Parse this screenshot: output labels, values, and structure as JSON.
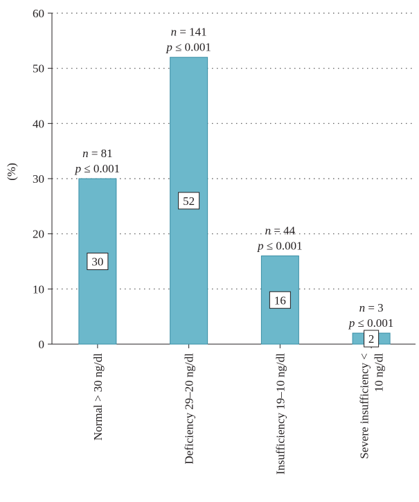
{
  "chart_data": {
    "type": "bar",
    "ylabel": "(%)",
    "ylim": [
      0,
      60
    ],
    "yticks": [
      0,
      10,
      20,
      30,
      40,
      50,
      60
    ],
    "grid": "horizontal dotted",
    "bar_color": "#6cb8cb",
    "bar_edge_color": "#3a8fa6",
    "categories": [
      [
        "Normal > 30 ng/dl"
      ],
      [
        "Deficiency 29–20 ng/dl"
      ],
      [
        "Insufficiency 19–10 ng/dl"
      ],
      [
        "Severe insufficiency <",
        "10 ng/dl"
      ]
    ],
    "values": [
      30,
      52,
      16,
      2
    ],
    "value_labels": [
      "30",
      "52",
      "16",
      "2"
    ],
    "annotations": [
      {
        "n": "n = 81",
        "p": "p ≤ 0.001"
      },
      {
        "n": "n = 141",
        "p": "p ≤ 0.001"
      },
      {
        "n": "n = 44",
        "p": "p ≤ 0.001"
      },
      {
        "n": "n = 3",
        "p": "p ≤ 0.001"
      }
    ]
  }
}
